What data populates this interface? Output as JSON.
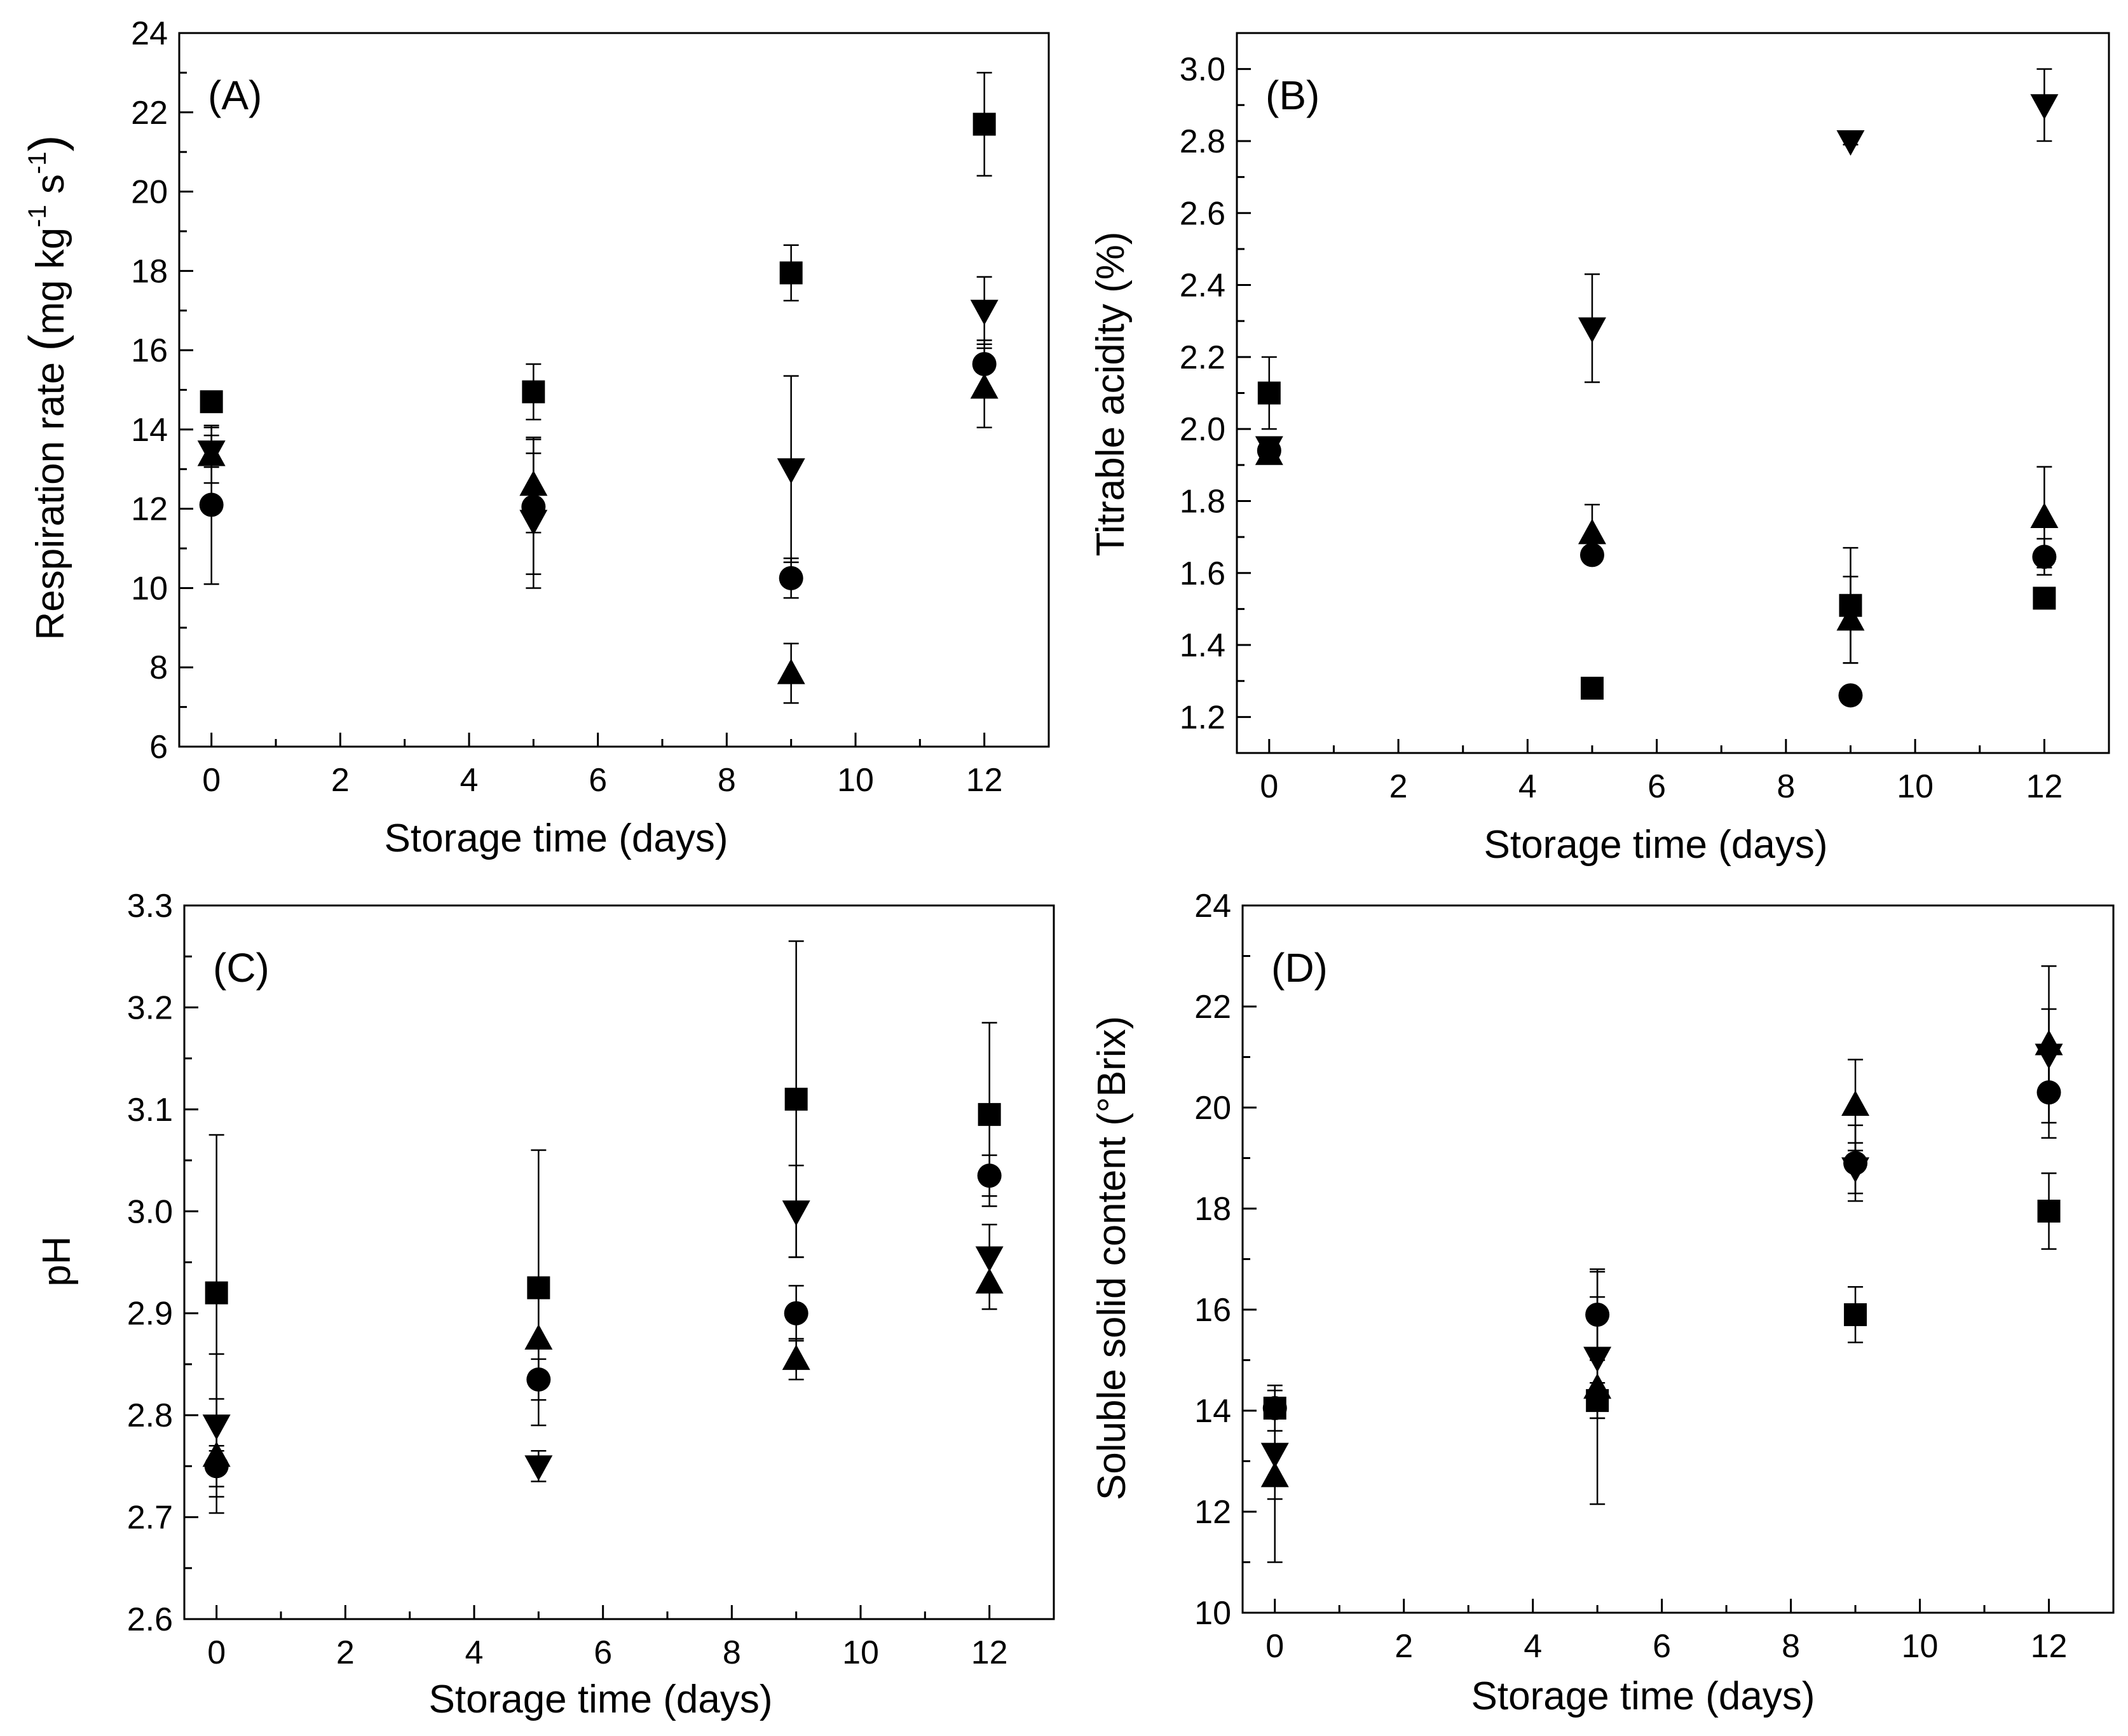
{
  "colors": {
    "ink": "#000000",
    "background": "#ffffff"
  },
  "markers": {
    "series_order": [
      "square",
      "circle",
      "up-triangle",
      "down-triangle"
    ]
  },
  "chart_data": [
    {
      "panel": "(A)",
      "type": "scatter",
      "xlabel": "Storage time (days)",
      "ylabel": "Respiration rate (mg kg-1 s-1)",
      "ylabel_parts": {
        "main": "Respiration rate ",
        "unit1": "mg kg",
        "exp1": "-1",
        "unit2": " s",
        "exp2": "-1"
      },
      "xlim": [
        -0.5,
        13
      ],
      "ylim": [
        6,
        24
      ],
      "xticks": [
        0,
        2,
        4,
        6,
        8,
        10,
        12
      ],
      "yticks": [
        6,
        8,
        10,
        12,
        14,
        16,
        18,
        20,
        22,
        24
      ],
      "ytick_labels": [
        "6",
        "8",
        "10",
        "12",
        "14",
        "16",
        "18",
        "20",
        "22",
        "24"
      ],
      "series": [
        {
          "name": "square",
          "x": [
            0,
            5,
            9,
            12
          ],
          "y": [
            14.7,
            14.95,
            17.95,
            21.7
          ],
          "err": [
            0,
            0.7,
            0.7,
            1.3
          ]
        },
        {
          "name": "circle",
          "x": [
            0,
            5,
            9,
            12
          ],
          "y": [
            12.1,
            12.05,
            10.25,
            15.65
          ],
          "err": [
            2.0,
            1.7,
            0.5,
            0.6
          ]
        },
        {
          "name": "up-triangle",
          "x": [
            0,
            5,
            9,
            12
          ],
          "y": [
            13.35,
            12.6,
            7.85,
            15.05
          ],
          "err": [
            0.7,
            1.2,
            0.75,
            1.0
          ]
        },
        {
          "name": "down-triangle",
          "x": [
            0,
            5,
            9,
            12
          ],
          "y": [
            13.45,
            11.7,
            13.0,
            17.0
          ],
          "err": [
            0.4,
            1.7,
            2.35,
            0.85
          ]
        }
      ]
    },
    {
      "panel": "(B)",
      "type": "scatter",
      "xlabel": "Storage time (days)",
      "ylabel": "Titrable acidity (%)",
      "xlim": [
        -0.5,
        13
      ],
      "ylim": [
        1.1,
        3.1
      ],
      "xticks": [
        0,
        2,
        4,
        6,
        8,
        10,
        12
      ],
      "yticks": [
        1.2,
        1.4,
        1.6,
        1.8,
        2.0,
        2.2,
        2.4,
        2.6,
        2.8,
        3.0
      ],
      "ytick_labels": [
        "1.2",
        "1.4",
        "1.6",
        "1.8",
        "2.0",
        "2.2",
        "2.4",
        "2.6",
        "2.8",
        "3.0"
      ],
      "series": [
        {
          "name": "square",
          "x": [
            0,
            5,
            9,
            12
          ],
          "y": [
            2.1,
            1.28,
            1.51,
            1.53
          ],
          "err": [
            0.1,
            0,
            0.16,
            0
          ]
        },
        {
          "name": "circle",
          "x": [
            0,
            5,
            9,
            12
          ],
          "y": [
            1.94,
            1.65,
            1.26,
            1.645
          ],
          "err": [
            0,
            0.02,
            0,
            0.05
          ]
        },
        {
          "name": "up-triangle",
          "x": [
            0,
            5,
            9,
            12
          ],
          "y": [
            1.93,
            1.71,
            1.47,
            1.755
          ],
          "err": [
            0.02,
            0.08,
            0.12,
            0.14
          ]
        },
        {
          "name": "down-triangle",
          "x": [
            0,
            5,
            9,
            12
          ],
          "y": [
            1.95,
            2.28,
            2.8,
            2.9
          ],
          "err": [
            0.02,
            0.15,
            0.01,
            0.1
          ]
        }
      ]
    },
    {
      "panel": "(C)",
      "type": "scatter",
      "xlabel": "Storage time (days)",
      "ylabel": "pH",
      "xlim": [
        -0.5,
        13
      ],
      "ylim": [
        2.6,
        3.3
      ],
      "xticks": [
        0,
        2,
        4,
        6,
        8,
        10,
        12
      ],
      "yticks": [
        2.6,
        2.7,
        2.8,
        2.9,
        3.0,
        3.1,
        3.2,
        3.3
      ],
      "ytick_labels": [
        "2.6",
        "2.7",
        "2.8",
        "2.9",
        "3.0",
        "3.1",
        "3.2",
        "3.3"
      ],
      "series": [
        {
          "name": "square",
          "x": [
            0,
            5,
            9,
            12
          ],
          "y": [
            2.92,
            2.925,
            3.11,
            3.095
          ],
          "err": [
            0.155,
            0.135,
            0.155,
            0.09
          ]
        },
        {
          "name": "circle",
          "x": [
            0,
            5,
            9,
            12
          ],
          "y": [
            2.75,
            2.835,
            2.9,
            3.035
          ],
          "err": [
            0.02,
            0.02,
            0.027,
            0.02
          ]
        },
        {
          "name": "up-triangle",
          "x": [
            0,
            5,
            9,
            12
          ],
          "y": [
            2.76,
            2.875,
            2.855,
            2.93
          ],
          "err": [
            0.056,
            0.04,
            0.02,
            0.026
          ]
        },
        {
          "name": "down-triangle",
          "x": [
            0,
            5,
            9,
            12
          ],
          "y": [
            2.79,
            2.75,
            3.0,
            2.955
          ],
          "err": [
            0.07,
            0.015,
            0.045,
            0.032
          ]
        }
      ]
    },
    {
      "panel": "(D)",
      "type": "scatter",
      "xlabel": "Storage time (days)",
      "ylabel": "Soluble solid content (°Brix)",
      "xlim": [
        -0.5,
        13
      ],
      "ylim": [
        10,
        24
      ],
      "xticks": [
        0,
        2,
        4,
        6,
        8,
        10,
        12
      ],
      "yticks": [
        10,
        12,
        14,
        16,
        18,
        20,
        22,
        24
      ],
      "ytick_labels": [
        "10",
        "12",
        "14",
        "16",
        "18",
        "20",
        "22",
        "24"
      ],
      "series": [
        {
          "name": "square",
          "x": [
            0,
            5,
            9,
            12
          ],
          "y": [
            14.05,
            14.2,
            15.9,
            17.95
          ],
          "err": [
            0,
            0.35,
            0.55,
            0.75
          ]
        },
        {
          "name": "circle",
          "x": [
            0,
            5,
            9,
            12
          ],
          "y": [
            14.05,
            15.9,
            18.9,
            20.3
          ],
          "err": [
            0.45,
            0.9,
            0.75,
            0.9
          ]
        },
        {
          "name": "up-triangle",
          "x": [
            0,
            5,
            9,
            12
          ],
          "y": [
            12.7,
            14.45,
            20.05,
            21.25
          ],
          "err": [
            1.7,
            2.3,
            0.9,
            1.55
          ]
        },
        {
          "name": "down-triangle",
          "x": [
            0,
            5,
            9,
            12
          ],
          "y": [
            13.15,
            15.05,
            18.8,
            21.05
          ],
          "err": [
            0.9,
            1.2,
            0.5,
            0.9
          ]
        }
      ]
    }
  ]
}
